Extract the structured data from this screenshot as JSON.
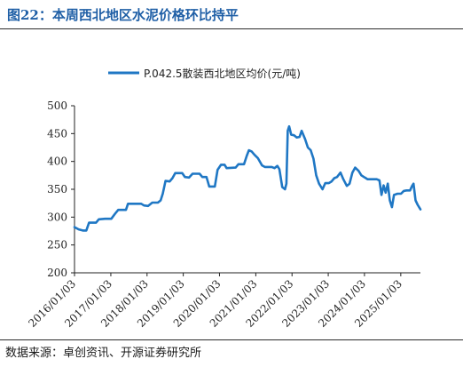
{
  "figure": {
    "title": "图22：本周西北地区水泥价格环比持平",
    "source": "数据来源：卓创资讯、开源证券研究所"
  },
  "chart_data": {
    "type": "line",
    "title": "",
    "xlabel": "",
    "ylabel": "",
    "ylim": [
      200,
      500
    ],
    "yticks": [
      200,
      250,
      300,
      350,
      400,
      450,
      500
    ],
    "xticks": [
      "2016/01/03",
      "2017/01/03",
      "2018/01/03",
      "2019/01/03",
      "2020/01/03",
      "2021/01/03",
      "2022/01/03",
      "2023/01/03",
      "2024/01/03",
      "2025/01/03"
    ],
    "xlim": [
      "2016/01/03",
      "2025/07/20"
    ],
    "legend_position": "top",
    "grid": false,
    "series": [
      {
        "name": "P.042.5散装西北地区均价(元/吨)",
        "color": "#1f77c4",
        "points": [
          [
            "2016/01/03",
            282
          ],
          [
            "2016/02/14",
            278
          ],
          [
            "2016/03/27",
            276
          ],
          [
            "2016/05/01",
            276
          ],
          [
            "2016/05/29",
            290
          ],
          [
            "2016/08/07",
            290
          ],
          [
            "2016/09/04",
            296
          ],
          [
            "2016/11/06",
            297
          ],
          [
            "2017/01/08",
            297
          ],
          [
            "2017/02/19",
            307
          ],
          [
            "2017/03/19",
            313
          ],
          [
            "2017/06/04",
            313
          ],
          [
            "2017/06/25",
            324
          ],
          [
            "2017/11/05",
            324
          ],
          [
            "2017/12/03",
            321
          ],
          [
            "2018/01/14",
            320
          ],
          [
            "2018/02/25",
            326
          ],
          [
            "2018/04/22",
            326
          ],
          [
            "2018/05/20",
            330
          ],
          [
            "2018/06/10",
            342
          ],
          [
            "2018/07/08",
            365
          ],
          [
            "2018/08/19",
            364
          ],
          [
            "2018/09/16",
            370
          ],
          [
            "2018/10/14",
            379
          ],
          [
            "2018/12/23",
            379
          ],
          [
            "2019/01/20",
            372
          ],
          [
            "2019/03/03",
            371
          ],
          [
            "2019/04/07",
            378
          ],
          [
            "2019/06/16",
            378
          ],
          [
            "2019/07/14",
            372
          ],
          [
            "2019/08/25",
            372
          ],
          [
            "2019/09/22",
            355
          ],
          [
            "2019/11/17",
            355
          ],
          [
            "2019/12/15",
            385
          ],
          [
            "2020/01/19",
            394
          ],
          [
            "2020/02/23",
            394
          ],
          [
            "2020/03/15",
            388
          ],
          [
            "2020/06/14",
            389
          ],
          [
            "2020/07/12",
            395
          ],
          [
            "2020/09/06",
            395
          ],
          [
            "2020/10/04",
            410
          ],
          [
            "2020/10/25",
            420
          ],
          [
            "2020/11/22",
            418
          ],
          [
            "2020/12/20",
            412
          ],
          [
            "2021/01/24",
            406
          ],
          [
            "2021/03/07",
            393
          ],
          [
            "2021/04/04",
            390
          ],
          [
            "2021/06/13",
            390
          ],
          [
            "2021/07/11",
            388
          ],
          [
            "2021/08/08",
            392
          ],
          [
            "2021/08/29",
            386
          ],
          [
            "2021/09/26",
            354
          ],
          [
            "2021/10/24",
            350
          ],
          [
            "2021/11/07",
            360
          ],
          [
            "2021/11/21",
            455
          ],
          [
            "2021/12/05",
            463
          ],
          [
            "2021/12/26",
            448
          ],
          [
            "2022/01/23",
            447
          ],
          [
            "2022/02/20",
            443
          ],
          [
            "2022/03/20",
            444
          ],
          [
            "2022/04/10",
            455
          ],
          [
            "2022/05/15",
            440
          ],
          [
            "2022/06/12",
            425
          ],
          [
            "2022/07/10",
            420
          ],
          [
            "2022/08/07",
            405
          ],
          [
            "2022/09/04",
            375
          ],
          [
            "2022/10/02",
            360
          ],
          [
            "2022/11/06",
            350
          ],
          [
            "2022/12/04",
            361
          ],
          [
            "2023/01/08",
            361
          ],
          [
            "2023/02/05",
            364
          ],
          [
            "2023/03/05",
            370
          ],
          [
            "2023/04/02",
            372
          ],
          [
            "2023/05/07",
            380
          ],
          [
            "2023/06/04",
            368
          ],
          [
            "2023/07/09",
            356
          ],
          [
            "2023/08/06",
            360
          ],
          [
            "2023/09/03",
            380
          ],
          [
            "2023/10/01",
            389
          ],
          [
            "2023/11/05",
            383
          ],
          [
            "2023/12/03",
            375
          ],
          [
            "2024/01/07",
            371
          ],
          [
            "2024/02/04",
            368
          ],
          [
            "2024/03/10",
            368
          ],
          [
            "2024/05/05",
            368
          ],
          [
            "2024/06/02",
            366
          ],
          [
            "2024/06/23",
            340
          ],
          [
            "2024/07/14",
            357
          ],
          [
            "2024/08/04",
            344
          ],
          [
            "2024/08/25",
            360
          ],
          [
            "2024/09/15",
            330
          ],
          [
            "2024/10/06",
            318
          ],
          [
            "2024/10/27",
            340
          ],
          [
            "2024/12/01",
            342
          ],
          [
            "2025/01/05",
            342
          ],
          [
            "2025/02/02",
            347
          ],
          [
            "2025/03/02",
            348
          ],
          [
            "2025/04/06",
            348
          ],
          [
            "2025/04/27",
            356
          ],
          [
            "2025/05/11",
            360
          ],
          [
            "2025/06/01",
            330
          ],
          [
            "2025/06/22",
            322
          ],
          [
            "2025/07/20",
            314
          ]
        ]
      }
    ]
  }
}
